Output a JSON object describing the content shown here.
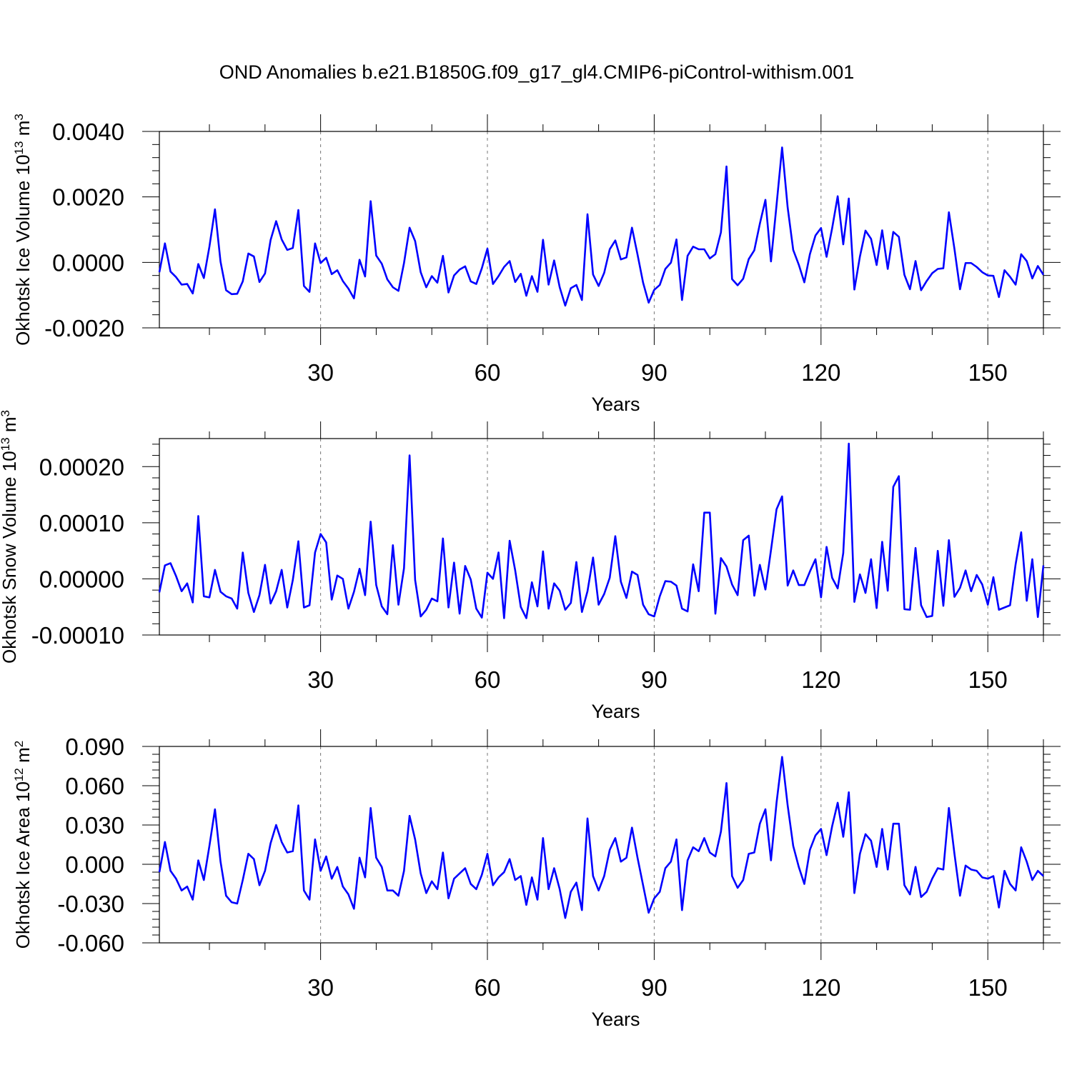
{
  "title": "OND Anomalies b.e21.B1850G.f09_g17_gl4.CMIP6-piControl-withism.001",
  "line_color": "#0000ff",
  "chart_data": [
    {
      "type": "line",
      "ylabel_main": "Okhotsk Ice Volume 10",
      "ylabel_exp": "13",
      "ylabel_unit": " m",
      "ylabel_unit_exp": "3",
      "xlabel": "Years",
      "xlim": [
        1,
        160
      ],
      "ylim": [
        -0.002,
        0.004
      ],
      "yticks": [
        -0.002,
        0.0,
        0.002,
        0.004
      ],
      "ytick_labels": [
        "-0.0020",
        "0.0000",
        "0.0020",
        "0.0040"
      ],
      "xticks": [
        30,
        60,
        90,
        120,
        150
      ],
      "xtick_labels": [
        "30",
        "60",
        "90",
        "120",
        "150"
      ],
      "grid": "dashed vertical at x ticks",
      "series": [
        {
          "x_start": 1,
          "values": [
            -0.0003,
            0.00058,
            -0.00028,
            -0.00045,
            -0.00068,
            -0.00066,
            -0.00095,
            -5e-05,
            -0.00048,
            0.00048,
            0.00162,
            2e-05,
            -0.00085,
            -0.00097,
            -0.00096,
            -0.00058,
            0.00027,
            0.00018,
            -0.0006,
            -0.00034,
            0.00068,
            0.00126,
            0.0007,
            0.00038,
            0.00044,
            0.0016,
            -0.00072,
            -0.0009,
            0.00058,
            -2e-05,
            0.00014,
            -0.00036,
            -0.00024,
            -0.00057,
            -0.0008,
            -0.0011,
            8e-05,
            -0.00043,
            0.00187,
            0.00021,
            -4e-05,
            -0.00052,
            -0.00076,
            -0.00087,
            -2e-05,
            0.00106,
            0.00065,
            -0.0003,
            -0.00076,
            -0.00042,
            -0.00062,
            0.0002,
            -0.00092,
            -0.0004,
            -0.00022,
            -0.00012,
            -0.00058,
            -0.00066,
            -0.00018,
            0.00042,
            -0.00066,
            -0.00042,
            -0.00014,
            4e-05,
            -0.0006,
            -0.00035,
            -0.00102,
            -0.00042,
            -0.0009,
            0.00069,
            -0.00068,
            6e-05,
            -0.00076,
            -0.00132,
            -0.00079,
            -0.00069,
            -0.00115,
            0.00147,
            -0.00037,
            -0.00072,
            -0.00032,
            0.0004,
            0.00067,
            9e-05,
            0.00015,
            0.00106,
            0.00024,
            -0.00062,
            -0.00123,
            -0.00084,
            -0.00069,
            -0.0002,
            -1e-05,
            0.0007,
            -0.00115,
            0.0002,
            0.00048,
            0.0004,
            0.0004,
            0.00012,
            0.00025,
            0.00092,
            0.00293,
            -0.00051,
            -0.0007,
            -0.0005,
            0.0001,
            0.00037,
            0.00118,
            0.00191,
            3e-05,
            0.00175,
            0.00351,
            0.00168,
            0.00038,
            -7e-05,
            -0.00061,
            0.00025,
            0.00082,
            0.00105,
            0.00017,
            0.00104,
            0.00202,
            0.00055,
            0.00195,
            -0.00083,
            0.00018,
            0.00097,
            0.00072,
            -8e-05,
            0.00098,
            -0.0002,
            0.00093,
            0.00078,
            -0.00038,
            -0.00082,
            4e-05,
            -0.00085,
            -0.00057,
            -0.00033,
            -0.0002,
            -0.00018,
            0.00153,
            0.00041,
            -0.00082,
            -2e-05,
            -2e-05,
            -0.00014,
            -0.0003,
            -0.0004,
            -0.00041,
            -0.00106,
            -0.00024,
            -0.00044,
            -0.00068,
            0.00025,
            4e-05,
            -0.00049,
            -0.00011,
            -0.00038
          ]
        }
      ]
    },
    {
      "type": "line",
      "ylabel_main": "Okhotsk Snow Volume 10",
      "ylabel_exp": "13",
      "ylabel_unit": " m",
      "ylabel_unit_exp": "3",
      "xlabel": "Years",
      "xlim": [
        1,
        160
      ],
      "ylim": [
        -0.0001,
        0.00025
      ],
      "yticks": [
        -0.0001,
        0.0,
        0.0001,
        0.0002
      ],
      "ytick_labels": [
        "-0.00010",
        "0.00000",
        "0.00010",
        "0.00020"
      ],
      "xticks": [
        30,
        60,
        90,
        120,
        150
      ],
      "xtick_labels": [
        "30",
        "60",
        "90",
        "120",
        "150"
      ],
      "grid": "dashed vertical at x ticks",
      "series": [
        {
          "x_start": 1,
          "values": [
            -2.4e-05,
            2.4e-05,
            2.8e-05,
            5e-06,
            -2.2e-05,
            -8e-06,
            -4.2e-05,
            0.000112,
            -3.1e-05,
            -3.3e-05,
            1.6e-05,
            -2.3e-05,
            -3.1e-05,
            -3.5e-05,
            -5.3e-05,
            4.7e-05,
            -2.5e-05,
            -5.9e-05,
            -2.9e-05,
            2.5e-05,
            -4.4e-05,
            -2.2e-05,
            1.6e-05,
            -5.1e-05,
            -2e-06,
            6.7e-05,
            -5.1e-05,
            -4.7e-05,
            4.7e-05,
            8e-05,
            6.5e-05,
            -3.7e-05,
            6e-06,
            0,
            -5.3e-05,
            -2.3e-05,
            1.8e-05,
            -2.9e-05,
            0.000102,
            -1.1e-05,
            -4.9e-05,
            -6.3e-05,
            6e-05,
            -4.6e-05,
            1.9e-05,
            0.00022,
            -2e-06,
            -6.7e-05,
            -5.5e-05,
            -3.5e-05,
            -4e-05,
            7.2e-05,
            -5.1e-05,
            2.9e-05,
            -6.2e-05,
            2.3e-05,
            -1e-06,
            -5.3e-05,
            -6.9e-05,
            1.1e-05,
            0,
            4.7e-05,
            -7e-05,
            6.8e-05,
            1.5e-05,
            -5e-05,
            -7e-05,
            -6e-06,
            -4.9e-05,
            4.9e-05,
            -5.3e-05,
            -8e-06,
            -2.1e-05,
            -5.5e-05,
            -4.3e-05,
            3e-05,
            -5.9e-05,
            -2.2e-05,
            3.8e-05,
            -4.6e-05,
            -2.7e-05,
            2e-06,
            7.6e-05,
            -5e-06,
            -3.4e-05,
            1.3e-05,
            7e-06,
            -4.6e-05,
            -6.3e-05,
            -6.7e-05,
            -3.1e-05,
            -4e-06,
            -5e-06,
            -1.2e-05,
            -5.3e-05,
            -5.8e-05,
            2.6e-05,
            -2.2e-05,
            0.000118,
            0.000118,
            -6.2e-05,
            3.7e-05,
            2.2e-05,
            -1e-05,
            -2.9e-05,
            6.9e-05,
            7.7e-05,
            -3e-05,
            2.5e-05,
            -1.9e-05,
            5.1e-05,
            0.000124,
            0.000147,
            -1.2e-05,
            1.5e-05,
            -1.1e-05,
            -1.1e-05,
            1.3e-05,
            3.5e-05,
            -3.3e-05,
            5.7e-05,
            2e-06,
            -1.7e-05,
            4.6e-05,
            0.000241,
            -4.1e-05,
            8e-06,
            -2.5e-05,
            3.5e-05,
            -5.2e-05,
            6.6e-05,
            -2.1e-05,
            0.000164,
            0.000183,
            -5.4e-05,
            -5.5e-05,
            5.5e-05,
            -4.7e-05,
            -6.8e-05,
            -6.6e-05,
            5e-05,
            -4.8e-05,
            6.9e-05,
            -3.2e-05,
            -1.6e-05,
            1.5e-05,
            -2.2e-05,
            7e-06,
            -1e-05,
            -4.6e-05,
            3e-06,
            -5.5e-05,
            -5.1e-05,
            -4.7e-05,
            2.6e-05,
            8.3e-05,
            -3.9e-05,
            3.5e-05,
            -6.8e-05,
            2.4e-05
          ]
        }
      ]
    },
    {
      "type": "line",
      "ylabel_main": "Okhotsk Ice Area 10",
      "ylabel_exp": "12",
      "ylabel_unit": " m",
      "ylabel_unit_exp": "2",
      "xlabel": "Years",
      "xlim": [
        1,
        160
      ],
      "ylim": [
        -0.06,
        0.09
      ],
      "yticks": [
        -0.06,
        -0.03,
        0.0,
        0.03,
        0.06,
        0.09
      ],
      "ytick_labels": [
        "-0.060",
        "-0.030",
        "0.000",
        "0.030",
        "0.060",
        "0.090"
      ],
      "xticks": [
        30,
        60,
        90,
        120,
        150
      ],
      "xtick_labels": [
        "30",
        "60",
        "90",
        "120",
        "150"
      ],
      "grid": "dashed vertical at x ticks",
      "series": [
        {
          "x_start": 1,
          "values": [
            -0.006,
            0.017,
            -0.005,
            -0.011,
            -0.02,
            -0.017,
            -0.027,
            0.003,
            -0.012,
            0.014,
            0.042,
            0.002,
            -0.024,
            -0.029,
            -0.03,
            -0.012,
            0.008,
            0.004,
            -0.016,
            -0.005,
            0.016,
            0.03,
            0.017,
            0.009,
            0.01,
            0.045,
            -0.02,
            -0.027,
            0.019,
            -0.005,
            0.006,
            -0.011,
            -0.002,
            -0.017,
            -0.023,
            -0.034,
            0.005,
            -0.01,
            0.043,
            0.005,
            -0.002,
            -0.02,
            -0.02,
            -0.024,
            -0.005,
            0.037,
            0.019,
            -0.007,
            -0.022,
            -0.013,
            -0.019,
            0.009,
            -0.026,
            -0.011,
            -0.007,
            -0.003,
            -0.015,
            -0.019,
            -0.008,
            0.008,
            -0.016,
            -0.01,
            -0.006,
            0.004,
            -0.012,
            -0.009,
            -0.031,
            -0.01,
            -0.027,
            0.02,
            -0.019,
            -0.003,
            -0.019,
            -0.041,
            -0.021,
            -0.014,
            -0.035,
            0.035,
            -0.009,
            -0.02,
            -0.009,
            0.011,
            0.02,
            0.002,
            0.005,
            0.028,
            0.005,
            -0.016,
            -0.037,
            -0.026,
            -0.021,
            -0.003,
            0.002,
            0.019,
            -0.035,
            0.003,
            0.013,
            0.01,
            0.02,
            0.009,
            0.006,
            0.025,
            0.062,
            -0.009,
            -0.018,
            -0.012,
            0.008,
            0.009,
            0.031,
            0.042,
            0.003,
            0.047,
            0.082,
            0.045,
            0.014,
            -0.002,
            -0.015,
            0.011,
            0.022,
            0.027,
            0.007,
            0.029,
            0.047,
            0.021,
            0.055,
            -0.022,
            0.008,
            0.023,
            0.018,
            -0.002,
            0.027,
            -0.004,
            0.031,
            0.031,
            -0.016,
            -0.023,
            -0.002,
            -0.025,
            -0.021,
            -0.011,
            -0.003,
            -0.004,
            0.043,
            0.008,
            -0.024,
            -0.001,
            -0.004,
            -0.005,
            -0.01,
            -0.011,
            -0.009,
            -0.033,
            -0.005,
            -0.015,
            -0.02,
            0.013,
            0.002,
            -0.012,
            -0.005,
            -0.009
          ]
        }
      ]
    }
  ]
}
